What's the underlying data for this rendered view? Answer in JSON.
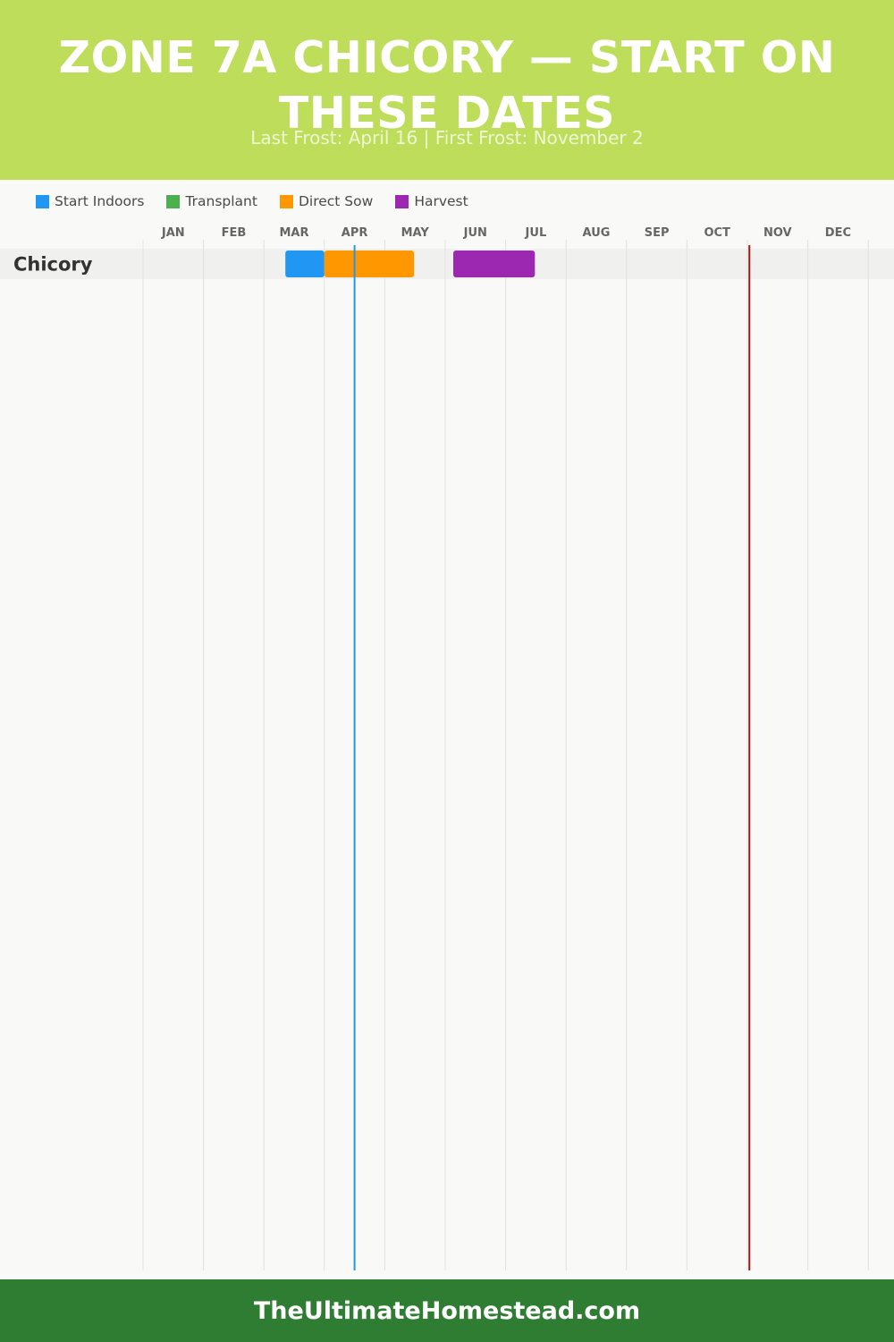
{
  "header": {
    "title": "ZONE 7A CHICORY — START ON THESE DATES",
    "subtitle": "Last Frost: April 16 | First Frost: November 2"
  },
  "legend": {
    "items": [
      {
        "label": "Start Indoors",
        "color": "#2196f3"
      },
      {
        "label": "Transplant",
        "color": "#4caf50"
      },
      {
        "label": "Direct Sow",
        "color": "#ff9800"
      },
      {
        "label": "Harvest",
        "color": "#9c27b0"
      }
    ]
  },
  "chart_data": {
    "type": "gantt",
    "months": [
      "JAN",
      "FEB",
      "MAR",
      "APR",
      "MAY",
      "JUN",
      "JUL",
      "AUG",
      "SEP",
      "OCT",
      "NOV",
      "DEC"
    ],
    "rows": [
      {
        "label": "Chicory",
        "bars": [
          {
            "stage": "Start Indoors",
            "start": "03-12",
            "end": "04-01"
          },
          {
            "stage": "Direct Sow",
            "start": "04-01",
            "end": "05-16"
          },
          {
            "stage": "Harvest",
            "start": "06-05",
            "end": "07-16"
          }
        ]
      }
    ],
    "markers": [
      {
        "date": "04-16",
        "color": "#2196f3"
      },
      {
        "date": "11-02",
        "color": "#a31515"
      }
    ],
    "colors": {
      "Start Indoors": "#2196f3",
      "Transplant": "#4caf50",
      "Direct Sow": "#ff9800",
      "Harvest": "#9c27b0"
    }
  },
  "footer": {
    "site": "TheUltimateHomestead.com"
  }
}
